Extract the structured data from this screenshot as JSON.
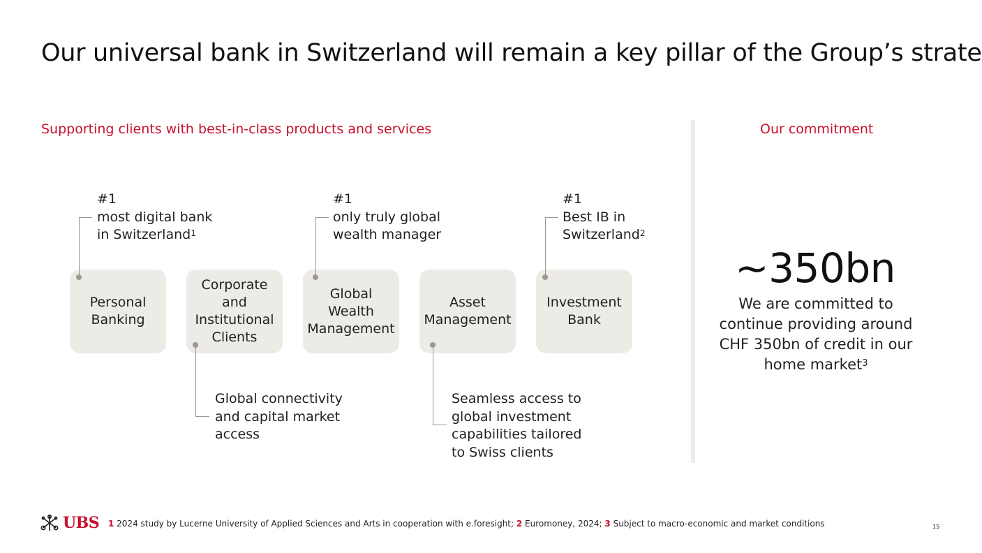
{
  "title": "Our universal bank in Switzerland will remain a key pillar of the Group’s strategy",
  "left_section": {
    "heading": "Supporting clients with best-in-class products and services",
    "pillars": [
      {
        "label": "Personal\nBanking"
      },
      {
        "label": "Corporate\nand\nInstitutional\nClients"
      },
      {
        "label": "Global\nWealth\nManagement"
      },
      {
        "label": "Asset\nManagement"
      },
      {
        "label": "Investment\nBank"
      }
    ],
    "callouts": {
      "personal_banking": {
        "text": "#1\nmost digital bank\nin Switzerland",
        "sup": "1"
      },
      "corporate": {
        "text": "Global connectivity\nand capital market\naccess"
      },
      "wealth": {
        "text": "#1\nonly truly global\nwealth manager"
      },
      "asset": {
        "text": "Seamless access to\nglobal investment\ncapabilities tailored\nto Swiss clients"
      },
      "ib": {
        "text": "#1\nBest IB in\nSwitzerland",
        "sup": "2"
      }
    }
  },
  "right_section": {
    "heading": "Our commitment",
    "big_number": "~350bn",
    "text": "We are committed to continue providing around CHF 350bn of credit in our home market",
    "sup": "3"
  },
  "footer": {
    "logo_text": "UBS",
    "footnotes": [
      {
        "num": "1",
        "text": " 2024 study by Lucerne University of Applied Sciences and Arts in cooperation with e.foresight; "
      },
      {
        "num": "2",
        "text": " Euromoney, 2024; "
      },
      {
        "num": "3",
        "text": " Subject to macro-economic and market conditions"
      }
    ],
    "page_number": "15"
  },
  "colors": {
    "accent": "#c8102e",
    "pillar_bg": "#ecebe6",
    "connector": "#9a9890"
  },
  "icons": {
    "logo": "ubs-keys-icon"
  }
}
